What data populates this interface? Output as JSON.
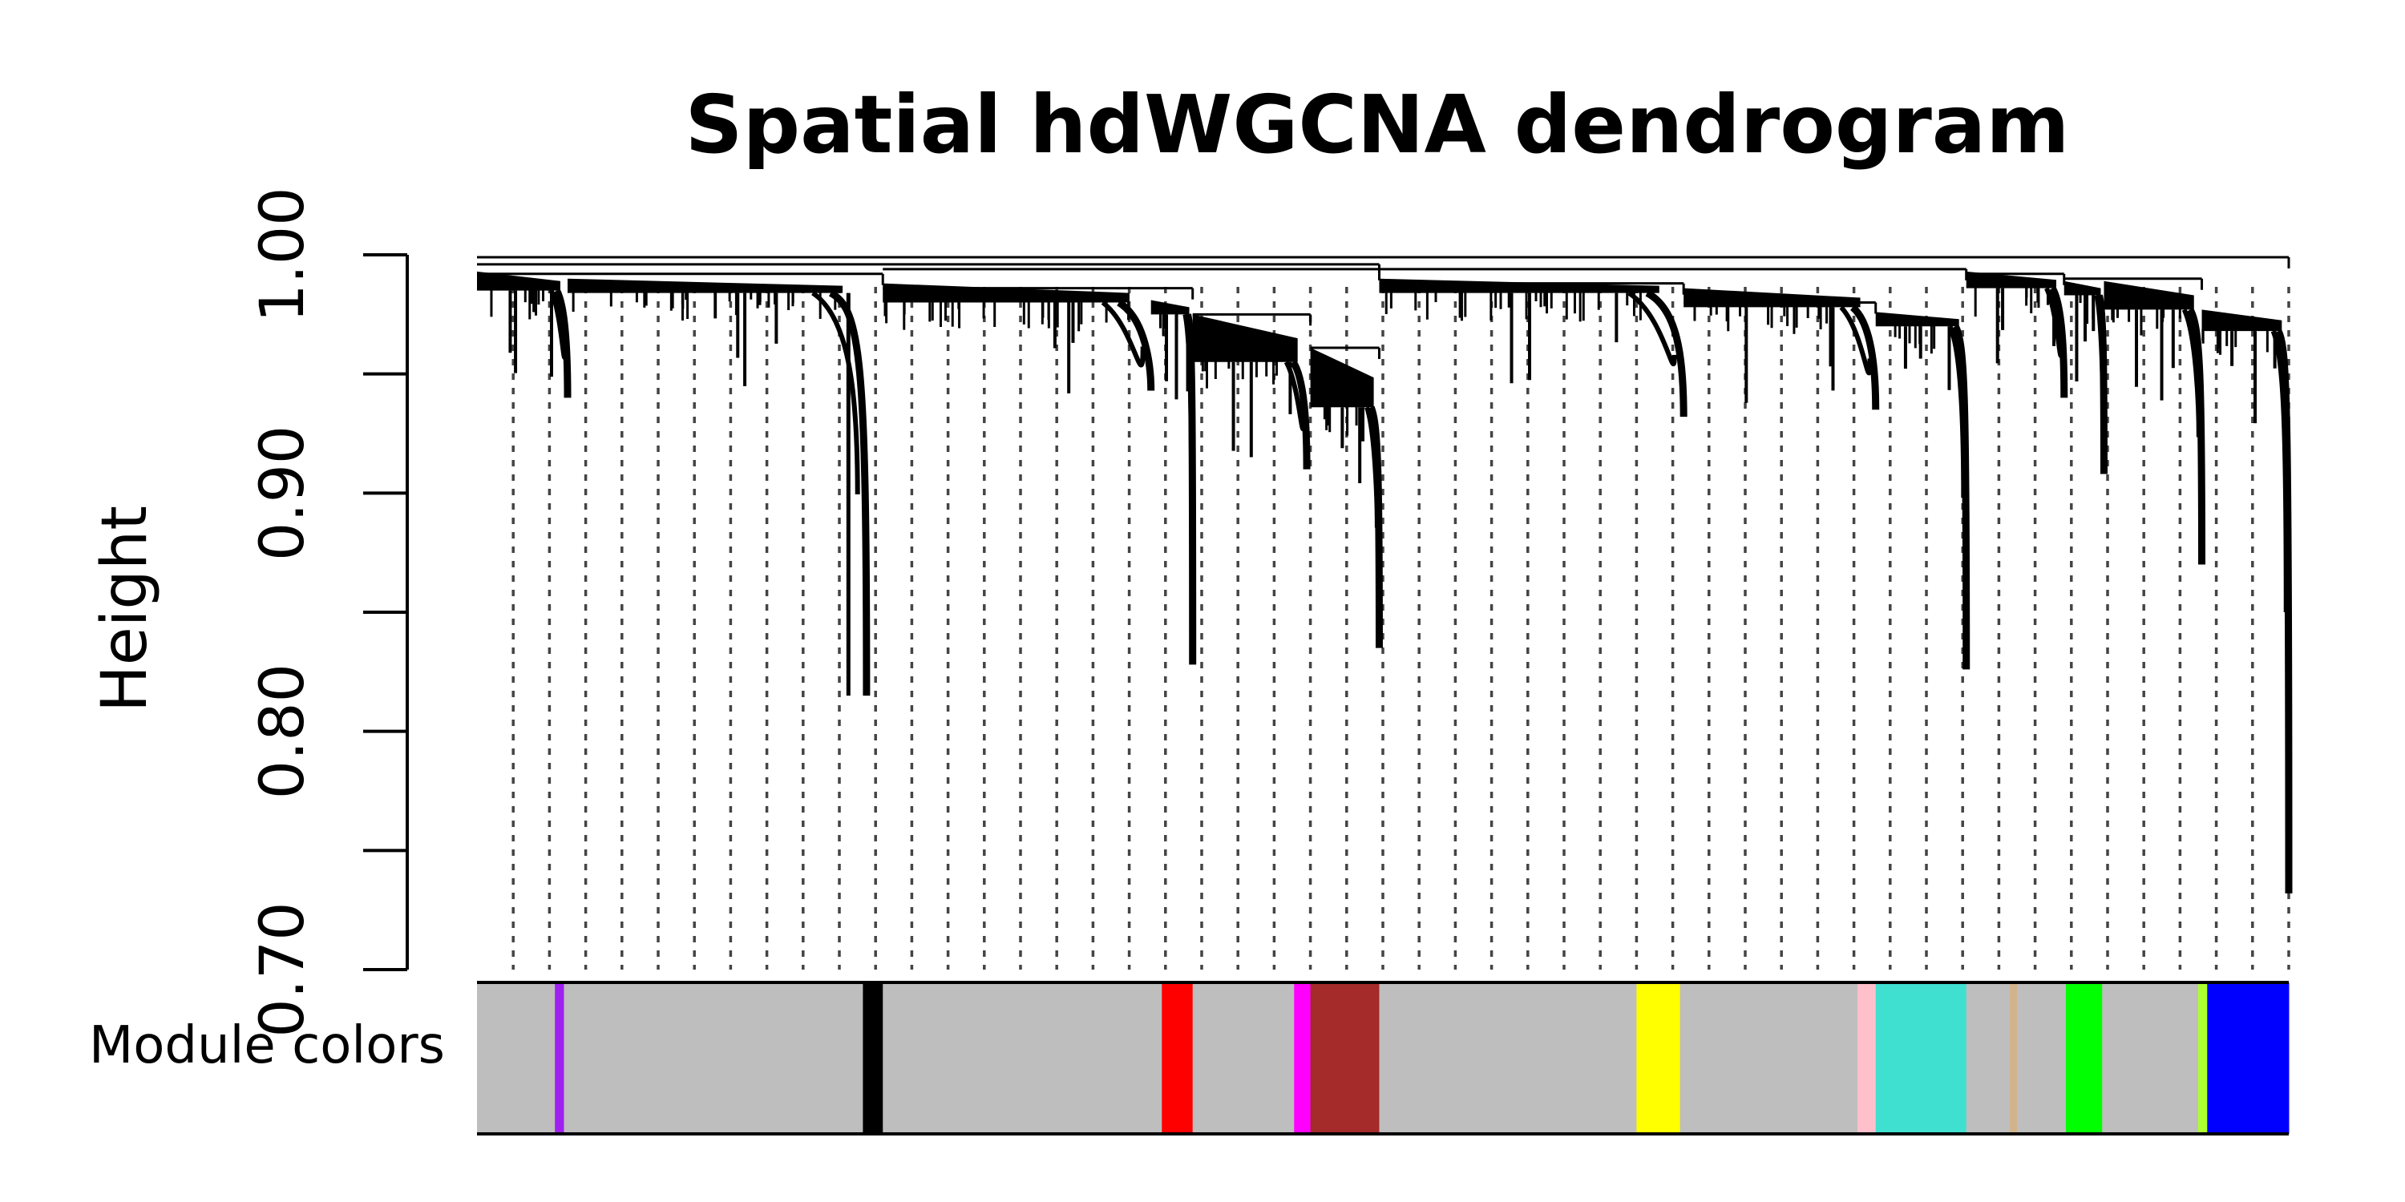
{
  "chart_data": {
    "type": "dendrogram",
    "title": "Spatial hdWGCNA dendrogram",
    "ylabel": "Height",
    "xlabel": "",
    "ylim": [
      0.7,
      1.0
    ],
    "y_ticks": [
      0.7,
      0.75,
      0.8,
      0.85,
      0.9,
      0.95,
      1.0
    ],
    "y_tick_labels": [
      "0.70",
      "",
      "0.80",
      "",
      "0.90",
      "",
      "1.00"
    ],
    "color_row_label": "Module colors",
    "grid": "dotted vertical guide lines",
    "modules": [
      {
        "color": "#BEBEBE",
        "start": 0.0,
        "end": 0.043
      },
      {
        "color": "#A020F0",
        "start": 0.043,
        "end": 0.048
      },
      {
        "color": "#BEBEBE",
        "start": 0.048,
        "end": 0.213
      },
      {
        "color": "#000000",
        "start": 0.213,
        "end": 0.224
      },
      {
        "color": "#BEBEBE",
        "start": 0.224,
        "end": 0.378
      },
      {
        "color": "#FF0000",
        "start": 0.378,
        "end": 0.395
      },
      {
        "color": "#BEBEBE",
        "start": 0.395,
        "end": 0.451
      },
      {
        "color": "#FF00FF",
        "start": 0.451,
        "end": 0.46
      },
      {
        "color": "#A52A2A",
        "start": 0.46,
        "end": 0.498
      },
      {
        "color": "#BEBEBE",
        "start": 0.498,
        "end": 0.64
      },
      {
        "color": "#FFFF00",
        "start": 0.64,
        "end": 0.664
      },
      {
        "color": "#BEBEBE",
        "start": 0.664,
        "end": 0.762
      },
      {
        "color": "#FFC0CB",
        "start": 0.762,
        "end": 0.772
      },
      {
        "color": "#40E0D0",
        "start": 0.772,
        "end": 0.822
      },
      {
        "color": "#BEBEBE",
        "start": 0.822,
        "end": 0.846
      },
      {
        "color": "#D2B48C",
        "start": 0.846,
        "end": 0.85
      },
      {
        "color": "#BEBEBE",
        "start": 0.85,
        "end": 0.877
      },
      {
        "color": "#00FF00",
        "start": 0.877,
        "end": 0.897
      },
      {
        "color": "#BEBEBE",
        "start": 0.897,
        "end": 0.95
      },
      {
        "color": "#ADFF2F",
        "start": 0.95,
        "end": 0.955
      },
      {
        "color": "#0000FF",
        "start": 0.955,
        "end": 1.0
      }
    ],
    "clusters": [
      {
        "start": 0.0,
        "end": 0.05,
        "top": 0.993,
        "bottom": 0.985,
        "tail": 0.94
      },
      {
        "start": 0.05,
        "end": 0.215,
        "top": 0.99,
        "bottom": 0.984,
        "tail": 0.815
      },
      {
        "start": 0.224,
        "end": 0.372,
        "top": 0.988,
        "bottom": 0.98,
        "tail": 0.943
      },
      {
        "start": 0.372,
        "end": 0.395,
        "top": 0.981,
        "bottom": 0.975,
        "tail": 0.828
      },
      {
        "start": 0.395,
        "end": 0.458,
        "top": 0.975,
        "bottom": 0.955,
        "tail": 0.91
      },
      {
        "start": 0.46,
        "end": 0.498,
        "top": 0.961,
        "bottom": 0.936,
        "tail": 0.835
      },
      {
        "start": 0.498,
        "end": 0.666,
        "top": 0.99,
        "bottom": 0.984,
        "tail": 0.932
      },
      {
        "start": 0.666,
        "end": 0.772,
        "top": 0.986,
        "bottom": 0.978,
        "tail": 0.935
      },
      {
        "start": 0.772,
        "end": 0.822,
        "top": 0.976,
        "bottom": 0.97,
        "tail": 0.826
      },
      {
        "start": 0.822,
        "end": 0.876,
        "top": 0.993,
        "bottom": 0.986,
        "tail": 0.94
      },
      {
        "start": 0.876,
        "end": 0.898,
        "top": 0.989,
        "bottom": 0.983,
        "tail": 0.908
      },
      {
        "start": 0.898,
        "end": 0.952,
        "top": 0.989,
        "bottom": 0.977,
        "tail": 0.87
      },
      {
        "start": 0.952,
        "end": 1.0,
        "top": 0.977,
        "bottom": 0.968,
        "tail": 0.732
      }
    ],
    "merges": [
      {
        "left": 0.0,
        "right": 0.224,
        "height": 0.992
      },
      {
        "left": 0.224,
        "right": 0.395,
        "height": 0.986
      },
      {
        "left": 0.395,
        "right": 0.46,
        "height": 0.975
      },
      {
        "left": 0.46,
        "right": 0.498,
        "height": 0.961
      },
      {
        "left": 0.498,
        "right": 0.666,
        "height": 0.988
      },
      {
        "left": 0.666,
        "right": 0.772,
        "height": 0.98
      },
      {
        "left": 0.224,
        "right": 0.498,
        "height": 0.994
      },
      {
        "left": 0.822,
        "right": 0.876,
        "height": 0.992
      },
      {
        "left": 0.876,
        "right": 0.952,
        "height": 0.99
      },
      {
        "left": 0.0,
        "right": 0.498,
        "height": 0.996
      },
      {
        "left": 0.498,
        "right": 0.822,
        "height": 0.994
      },
      {
        "left": 0.0,
        "right": 1.0,
        "height": 0.999
      }
    ]
  }
}
